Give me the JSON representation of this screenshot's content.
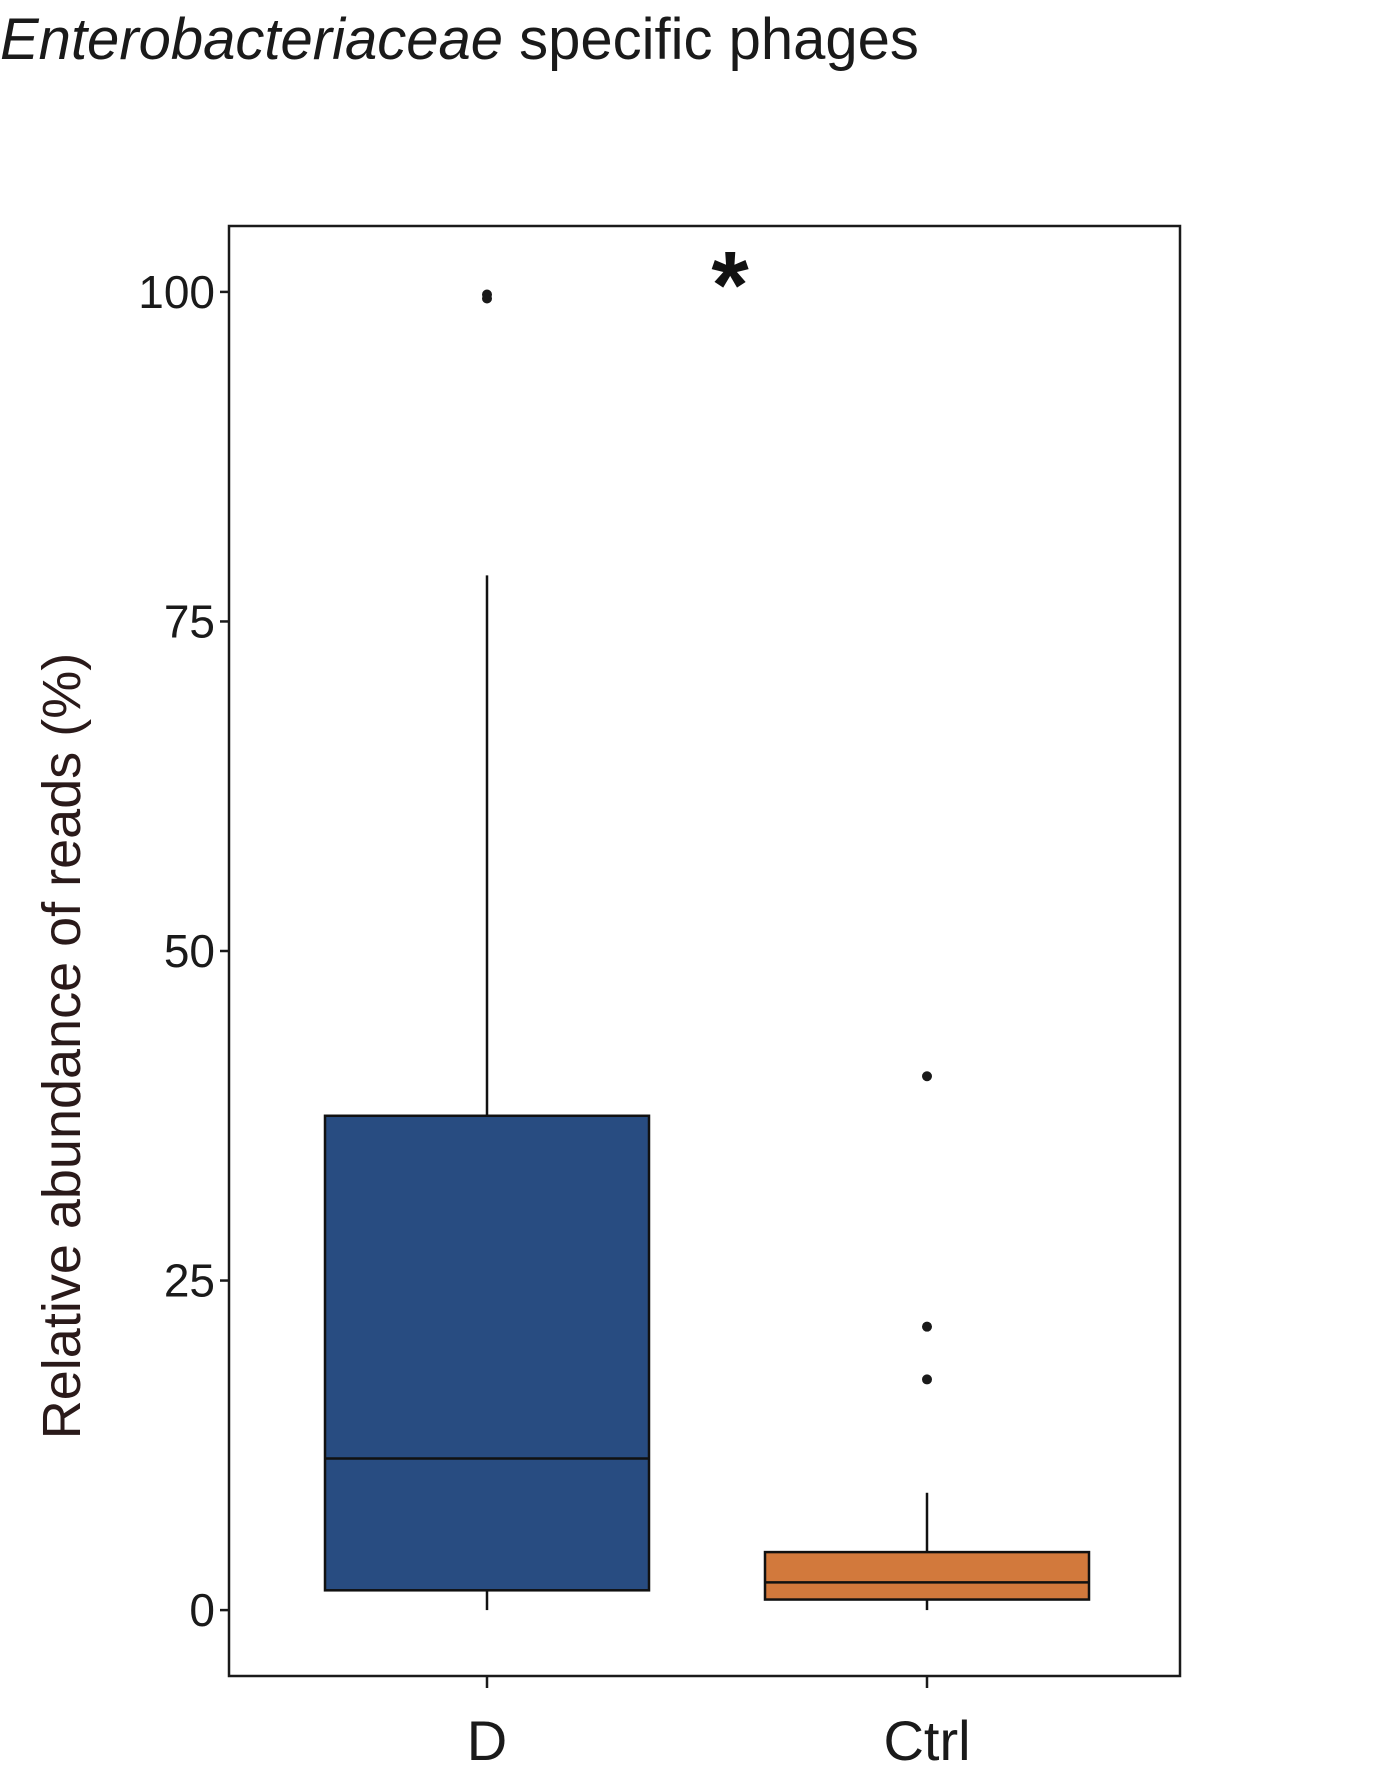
{
  "chart_data": {
    "type": "box",
    "title": {
      "italic": "Enterobacteriaceae",
      "rest": " specific phages"
    },
    "ylabel": "Relative abundance of reads (%)",
    "xlabel": "",
    "ylim": [
      -5,
      105
    ],
    "yticks": [
      0,
      25,
      50,
      75,
      100
    ],
    "ytick_labels": [
      "0",
      "25",
      "50",
      "75",
      "100"
    ],
    "categories": [
      "D",
      "Ctrl"
    ],
    "grid": false,
    "legend": "none",
    "significance": "*",
    "boxes": [
      {
        "category": "D",
        "color": "#284C81",
        "whisker_low": 0,
        "q1": 1.5,
        "median": 11.5,
        "q3": 37.5,
        "whisker_high": 78.5,
        "outliers": [
          99.5,
          99.8
        ]
      },
      {
        "category": "Ctrl",
        "color": "#D2793C",
        "whisker_low": 0,
        "q1": 0.8,
        "median": 2.1,
        "q3": 4.4,
        "whisker_high": 8.9,
        "outliers": [
          17.5,
          21.5,
          40.5
        ]
      }
    ]
  }
}
